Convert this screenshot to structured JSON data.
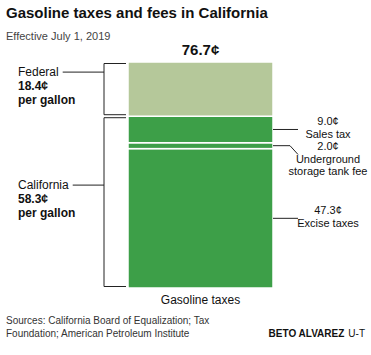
{
  "chart_data": {
    "type": "bar",
    "title": "Gasoline taxes and fees in California",
    "subtitle": "Effective July 1, 2019",
    "stacked": true,
    "data_labels": true,
    "tick_labels": false,
    "categories": [
      "Gasoline taxes"
    ],
    "ylim": [
      0,
      76.7
    ],
    "series": [
      {
        "name": "Excise taxes",
        "color": "#3d9f48",
        "values": [
          47.3
        ],
        "value_labels": [
          "47.3¢"
        ]
      },
      {
        "name": "Underground storage tank fee",
        "color": "#3d9f48",
        "values": [
          2.0
        ],
        "value_labels": [
          "2.0¢"
        ]
      },
      {
        "name": "Sales tax",
        "color": "#3d9f48",
        "values": [
          9.0
        ],
        "value_labels": [
          "9.0¢"
        ]
      },
      {
        "color": "#b5c89a",
        "values": [
          18.4
        ]
      }
    ],
    "total": {
      "value": 76.7,
      "label": "76.7¢"
    },
    "groups": [
      {
        "name": "California",
        "value": 58.3,
        "value_label": "58.3¢",
        "unit_label": "per gallon"
      },
      {
        "name": "Federal",
        "value": 18.4,
        "value_label": "18.4¢",
        "unit_label": "per gallon"
      }
    ],
    "sources": "Sources: California Board of Equalization; Tax Foundation; American Petroleum Institute",
    "credit": "BETO ALVAREZ",
    "credit_org": "U-T"
  }
}
